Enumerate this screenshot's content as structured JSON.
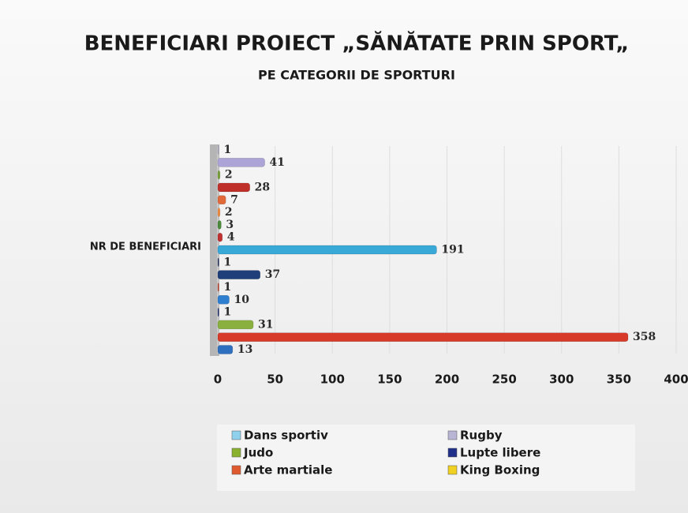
{
  "chart_data": {
    "type": "bar",
    "orientation": "horizontal",
    "title": "BENEFICIARI PROIECT „SĂNĂTATE PRIN SPORT„",
    "subtitle": "PE CATEGORII DE SPORTURI",
    "categories": [
      "NR DE BENEFICIARI"
    ],
    "series": [
      {
        "color": "#b8b8d0",
        "values": [
          1
        ]
      },
      {
        "color": "#aca4d6",
        "values": [
          41
        ]
      },
      {
        "color": "#7aa23a",
        "values": [
          2
        ]
      },
      {
        "color": "#c0302a",
        "values": [
          28
        ]
      },
      {
        "color": "#e06a3a",
        "values": [
          7
        ]
      },
      {
        "color": "#f08a40",
        "values": [
          2
        ]
      },
      {
        "color": "#4a8a3a",
        "values": [
          3
        ]
      },
      {
        "color": "#c03030",
        "values": [
          4
        ]
      },
      {
        "color": "#39a9d8",
        "values": [
          191
        ]
      },
      {
        "color": "#2a3a6a",
        "values": [
          1
        ]
      },
      {
        "color": "#1f3f7a",
        "values": [
          37
        ]
      },
      {
        "color": "#d04a30",
        "values": [
          1
        ]
      },
      {
        "color": "#2f7fd0",
        "values": [
          10
        ]
      },
      {
        "color": "#2a3a7a",
        "values": [
          1
        ]
      },
      {
        "color": "#8ab040",
        "values": [
          31
        ]
      },
      {
        "color": "#d83a2a",
        "values": [
          358
        ]
      },
      {
        "color": "#2f6fc0",
        "values": [
          13
        ]
      }
    ],
    "legend": [
      {
        "name": "Dans sportiv",
        "color": "#8fd0ec"
      },
      {
        "name": "Rugby",
        "color": "#b8b4d4"
      },
      {
        "name": "Judo",
        "color": "#8ab030"
      },
      {
        "name": "Lupte libere",
        "color": "#1f2f8a"
      },
      {
        "name": "Arte martiale",
        "color": "#e05a30"
      },
      {
        "name": "King Boxing",
        "color": "#f0d020"
      }
    ],
    "xlim": [
      0,
      400
    ],
    "xticks": [
      0,
      50,
      100,
      150,
      200,
      250,
      300,
      350,
      400
    ],
    "grid": true
  }
}
